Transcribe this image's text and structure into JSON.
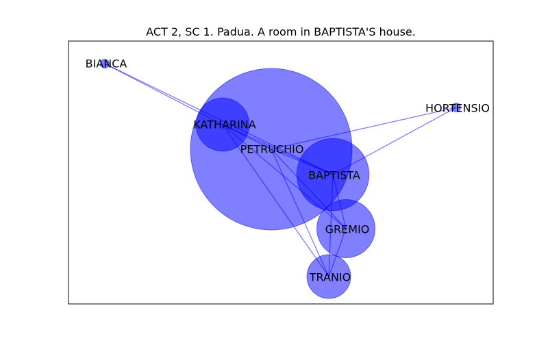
{
  "title": "ACT 2, SC 1. Padua. A room in BAPTISTA'S house.",
  "colors": {
    "node": "#0000ff",
    "edge": "#0000ff",
    "frame": "#000000",
    "label": "#000000"
  },
  "chart_data": {
    "type": "network",
    "nodes": [
      {
        "id": "BIANCA",
        "label": "BIANCA",
        "size": 1
      },
      {
        "id": "KATHARINA",
        "label": "KATHARINA",
        "size": 37
      },
      {
        "id": "PETRUCHIO",
        "label": "PETRUCHIO",
        "size": 340
      },
      {
        "id": "HORTENSIO",
        "label": "HORTENSIO",
        "size": 1
      },
      {
        "id": "BAPTISTA",
        "label": "BAPTISTA",
        "size": 68
      },
      {
        "id": "GREMIO",
        "label": "GREMIO",
        "size": 44
      },
      {
        "id": "TRANIO",
        "label": "TRANIO",
        "size": 25
      }
    ],
    "edges": [
      [
        "BIANCA",
        "KATHARINA"
      ],
      [
        "BIANCA",
        "BAPTISTA"
      ],
      [
        "KATHARINA",
        "PETRUCHIO"
      ],
      [
        "KATHARINA",
        "BAPTISTA"
      ],
      [
        "KATHARINA",
        "GREMIO"
      ],
      [
        "KATHARINA",
        "TRANIO"
      ],
      [
        "PETRUCHIO",
        "HORTENSIO"
      ],
      [
        "PETRUCHIO",
        "BAPTISTA"
      ],
      [
        "PETRUCHIO",
        "GREMIO"
      ],
      [
        "PETRUCHIO",
        "TRANIO"
      ],
      [
        "HORTENSIO",
        "BAPTISTA"
      ],
      [
        "BAPTISTA",
        "GREMIO"
      ],
      [
        "BAPTISTA",
        "TRANIO"
      ],
      [
        "GREMIO",
        "TRANIO"
      ]
    ]
  }
}
